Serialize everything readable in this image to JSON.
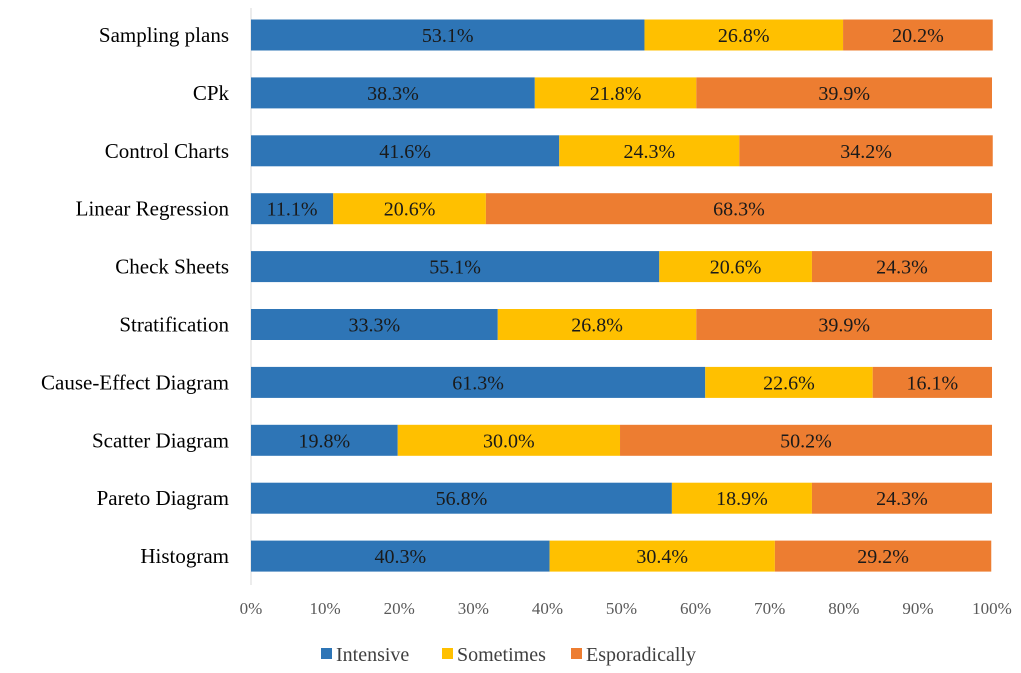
{
  "chart_data": {
    "type": "bar",
    "orientation": "horizontal",
    "stacked": "percent",
    "title": "",
    "xlabel": "",
    "ylabel": "",
    "xlim": [
      0,
      100
    ],
    "grid": false,
    "legend_position": "bottom",
    "categories": [
      "Sampling plans",
      "CPk",
      "Control Charts",
      "Linear Regression",
      "Check Sheets",
      "Stratification",
      "Cause-Effect Diagram",
      "Scatter Diagram",
      "Pareto Diagram",
      "Histogram"
    ],
    "series": [
      {
        "name": "Intensive",
        "color": "#2E75B6",
        "values": [
          53.1,
          38.3,
          41.6,
          11.1,
          55.1,
          33.3,
          61.3,
          19.8,
          56.8,
          40.3
        ]
      },
      {
        "name": "Sometimes",
        "color": "#FFC000",
        "values": [
          26.8,
          21.8,
          24.3,
          20.6,
          20.6,
          26.8,
          22.6,
          30.0,
          18.9,
          30.4
        ]
      },
      {
        "name": "Esporadically",
        "color": "#ED7D31",
        "values": [
          20.2,
          39.9,
          34.2,
          68.3,
          24.3,
          39.9,
          16.1,
          50.2,
          24.3,
          29.2
        ]
      }
    ],
    "x_ticks": [
      "0%",
      "10%",
      "20%",
      "30%",
      "40%",
      "50%",
      "60%",
      "70%",
      "80%",
      "90%",
      "100%"
    ],
    "value_label_format": "{v}%"
  }
}
